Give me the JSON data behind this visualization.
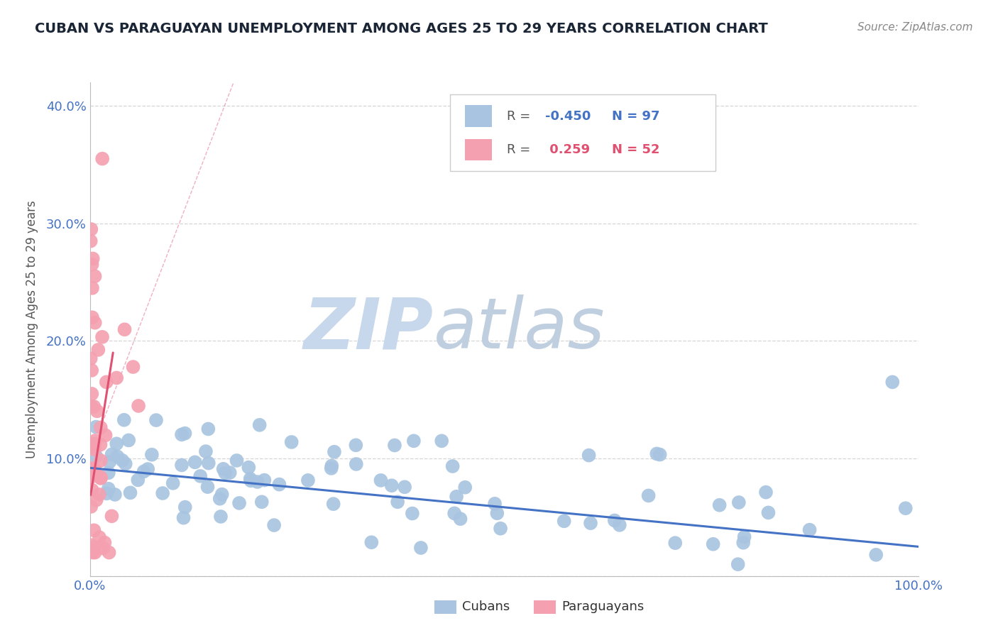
{
  "title": "CUBAN VS PARAGUAYAN UNEMPLOYMENT AMONG AGES 25 TO 29 YEARS CORRELATION CHART",
  "source": "Source: ZipAtlas.com",
  "ylabel": "Unemployment Among Ages 25 to 29 years",
  "xlim": [
    0.0,
    1.0
  ],
  "ylim": [
    0.0,
    0.42
  ],
  "xticks": [
    0.0,
    0.1,
    0.2,
    0.3,
    0.4,
    0.5,
    0.6,
    0.7,
    0.8,
    0.9,
    1.0
  ],
  "xticklabels": [
    "0.0%",
    "",
    "",
    "",
    "",
    "",
    "",
    "",
    "",
    "",
    "100.0%"
  ],
  "yticks": [
    0.0,
    0.1,
    0.2,
    0.3,
    0.4
  ],
  "yticklabels": [
    "",
    "10.0%",
    "20.0%",
    "30.0%",
    "40.0%"
  ],
  "cuban_R": -0.45,
  "cuban_N": 97,
  "paraguayan_R": 0.259,
  "paraguayan_N": 52,
  "cuban_color": "#a8c4e0",
  "paraguayan_color": "#f4a0b0",
  "cuban_line_color": "#4472c4",
  "paraguayan_line_color": "#e05070",
  "background_color": "#ffffff",
  "watermark_zip": "ZIP",
  "watermark_atlas": "atlas",
  "watermark_color_zip": "#c8d8ec",
  "watermark_color_atlas": "#c0cfe0",
  "grid_color": "#cccccc",
  "title_color": "#1a2535",
  "tick_color": "#4472c4",
  "ylabel_color": "#555555",
  "legend_edge_color": "#cccccc",
  "source_color": "#888888"
}
